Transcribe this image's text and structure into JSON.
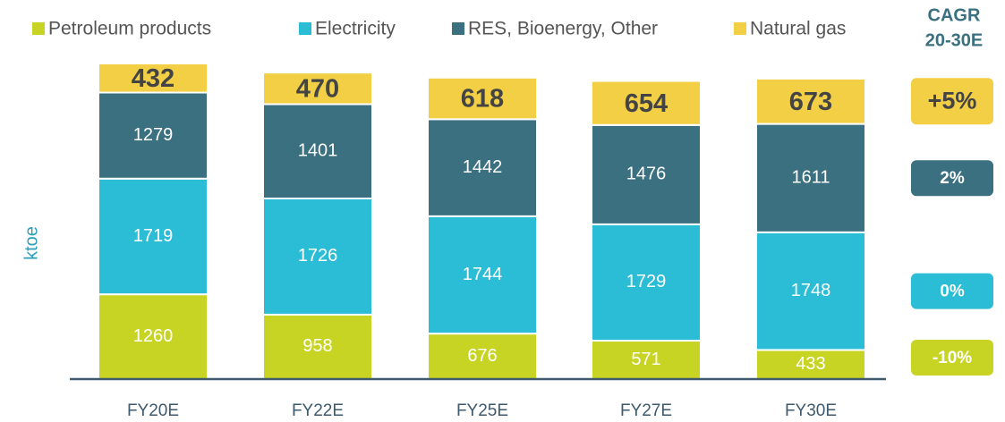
{
  "chart_data": {
    "type": "stacked_bar",
    "y_label": "ktoe",
    "categories": [
      "FY20E",
      "FY22E",
      "FY25E",
      "FY27E",
      "FY30E"
    ],
    "series": [
      {
        "name": "Petroleum products",
        "color": "#c8d424",
        "values": [
          1260,
          958,
          676,
          571,
          433
        ],
        "cagr": "-10%"
      },
      {
        "name": "Electricity",
        "color": "#2bbcd6",
        "values": [
          1719,
          1726,
          1744,
          1729,
          1748
        ],
        "cagr": "0%"
      },
      {
        "name": "RES, Bioenergy, Other",
        "color": "#3a7080",
        "values": [
          1279,
          1401,
          1442,
          1476,
          1611
        ],
        "cagr": "2%"
      },
      {
        "name": "Natural gas",
        "color": "#f2cf44",
        "values": [
          432,
          470,
          618,
          654,
          673
        ],
        "cagr": "+5%"
      }
    ],
    "cagr_title": [
      "CAGR",
      "20-30E"
    ]
  }
}
